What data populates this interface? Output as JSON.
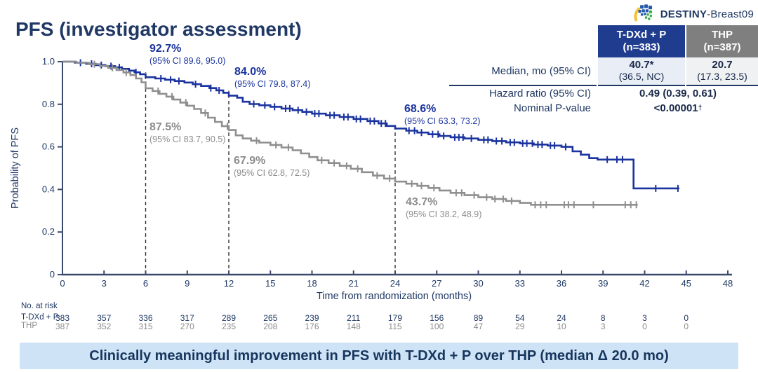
{
  "logo": {
    "name": "DESTINY",
    "suffix": "-Breast09"
  },
  "title": "PFS (investigator assessment)",
  "results_table": {
    "columns": [
      {
        "name": "T-DXd + P",
        "n": "(n=383)"
      },
      {
        "name": "THP",
        "n": "(n=387)"
      }
    ],
    "rows": [
      {
        "label": "Median, mo (95% CI)",
        "values": [
          {
            "main": "40.7*",
            "ci": "(36.5, NC)"
          },
          {
            "main": "20.7",
            "ci": "(17.3, 23.5)"
          }
        ]
      },
      {
        "label": "Hazard ratio (95% CI)",
        "span_value": "0.49 (0.39, 0.61)",
        "superscript": ""
      },
      {
        "label": "Nominal P-value",
        "span_value": "<0.00001",
        "superscript": "†"
      }
    ]
  },
  "chart_data": {
    "type": "line",
    "subtype": "kaplan-meier-step",
    "x_label": "Time from randomization (months)",
    "y_label": "Probability of PFS",
    "xlim": [
      0,
      48
    ],
    "ylim": [
      0,
      1.0
    ],
    "x_ticks": [
      0,
      3,
      6,
      9,
      12,
      15,
      18,
      21,
      24,
      27,
      30,
      33,
      36,
      39,
      42,
      45,
      48
    ],
    "y_ticks": [
      0,
      0.2,
      0.4,
      0.6,
      0.8,
      1.0
    ],
    "dashed_reference_months": [
      6,
      12,
      24
    ],
    "grid": false,
    "series": [
      {
        "name": "T-DXd + P",
        "color": "#1A339E",
        "steps": [
          [
            0,
            1
          ],
          [
            0.9,
            0.995
          ],
          [
            1.7,
            0.99
          ],
          [
            2.4,
            0.984
          ],
          [
            3.1,
            0.979
          ],
          [
            3.8,
            0.973
          ],
          [
            4.3,
            0.966
          ],
          [
            4.8,
            0.958
          ],
          [
            5.2,
            0.95
          ],
          [
            5.6,
            0.941
          ],
          [
            6,
            0.927
          ],
          [
            6.7,
            0.921
          ],
          [
            7.4,
            0.915
          ],
          [
            8.1,
            0.909
          ],
          [
            8.8,
            0.902
          ],
          [
            9.4,
            0.894
          ],
          [
            10,
            0.886
          ],
          [
            10.6,
            0.876
          ],
          [
            11.1,
            0.865
          ],
          [
            11.6,
            0.854
          ],
          [
            12,
            0.84
          ],
          [
            12.6,
            0.831
          ],
          [
            13,
            0.812
          ],
          [
            13.5,
            0.801
          ],
          [
            14.2,
            0.795
          ],
          [
            15,
            0.788
          ],
          [
            15.8,
            0.78
          ],
          [
            16.6,
            0.772
          ],
          [
            17.3,
            0.764
          ],
          [
            18,
            0.756
          ],
          [
            19,
            0.748
          ],
          [
            20,
            0.74
          ],
          [
            21,
            0.731
          ],
          [
            22,
            0.721
          ],
          [
            22.8,
            0.71
          ],
          [
            23.4,
            0.698
          ],
          [
            24,
            0.686
          ],
          [
            24.8,
            0.676
          ],
          [
            25.6,
            0.667
          ],
          [
            26.4,
            0.659
          ],
          [
            27.2,
            0.651
          ],
          [
            28,
            0.645
          ],
          [
            29,
            0.639
          ],
          [
            30,
            0.633
          ],
          [
            31,
            0.627
          ],
          [
            32,
            0.621
          ],
          [
            33,
            0.616
          ],
          [
            34,
            0.611
          ],
          [
            35,
            0.606
          ],
          [
            36,
            0.6
          ],
          [
            36.8,
            0.579
          ],
          [
            37.4,
            0.563
          ],
          [
            38,
            0.547
          ],
          [
            38.6,
            0.54
          ],
          [
            41.2,
            0.405
          ],
          [
            44.5,
            0.405
          ]
        ],
        "censor_times": [
          1.3,
          2.1,
          2.8,
          3.5,
          4.1,
          5.3,
          7.1,
          7.8,
          8.4,
          9.6,
          10.7,
          11.3,
          13.8,
          14.6,
          15.3,
          16.1,
          16.4,
          17,
          17.6,
          18.2,
          18.5,
          19.3,
          19.6,
          20.3,
          20.6,
          21.2,
          21.5,
          22.2,
          22.5,
          23,
          23.3,
          25,
          25.4,
          25.9,
          26.7,
          27.1,
          27.5,
          28.3,
          28.6,
          28.9,
          29.5,
          30.4,
          30.7,
          31.3,
          31.7,
          32.3,
          32.6,
          33.2,
          33.5,
          33.9,
          34.3,
          34.6,
          35.2,
          35.5,
          36.3,
          39.3,
          40,
          40.4,
          42.8,
          44.4
        ]
      },
      {
        "name": "THP",
        "color": "#8F8F8F",
        "steps": [
          [
            0,
            1
          ],
          [
            1,
            0.995
          ],
          [
            1.9,
            0.988
          ],
          [
            2.7,
            0.98
          ],
          [
            3.3,
            0.971
          ],
          [
            3.9,
            0.961
          ],
          [
            4.4,
            0.949
          ],
          [
            4.9,
            0.937
          ],
          [
            5.3,
            0.921
          ],
          [
            5.7,
            0.903
          ],
          [
            6,
            0.875
          ],
          [
            6.5,
            0.862
          ],
          [
            7,
            0.849
          ],
          [
            7.5,
            0.836
          ],
          [
            8,
            0.822
          ],
          [
            8.5,
            0.808
          ],
          [
            9,
            0.793
          ],
          [
            9.5,
            0.778
          ],
          [
            10,
            0.759
          ],
          [
            10.5,
            0.737
          ],
          [
            11,
            0.717
          ],
          [
            11.5,
            0.697
          ],
          [
            12,
            0.679
          ],
          [
            12.5,
            0.654
          ],
          [
            13,
            0.639
          ],
          [
            13.6,
            0.629
          ],
          [
            14.2,
            0.62
          ],
          [
            15,
            0.609
          ],
          [
            15.8,
            0.597
          ],
          [
            16.6,
            0.584
          ],
          [
            17.2,
            0.569
          ],
          [
            17.8,
            0.552
          ],
          [
            18.4,
            0.537
          ],
          [
            19.2,
            0.524
          ],
          [
            20,
            0.511
          ],
          [
            20.8,
            0.497
          ],
          [
            21.6,
            0.481
          ],
          [
            22.4,
            0.465
          ],
          [
            23.2,
            0.451
          ],
          [
            24,
            0.437
          ],
          [
            24.8,
            0.427
          ],
          [
            25.6,
            0.417
          ],
          [
            26.4,
            0.407
          ],
          [
            27.2,
            0.395
          ],
          [
            28,
            0.384
          ],
          [
            29,
            0.373
          ],
          [
            30,
            0.363
          ],
          [
            31,
            0.355
          ],
          [
            32,
            0.346
          ],
          [
            33,
            0.337
          ],
          [
            33.8,
            0.328
          ],
          [
            41.5,
            0.328
          ]
        ],
        "censor_times": [
          2.3,
          3.6,
          4.6,
          6.9,
          7.9,
          8.9,
          10.3,
          11.9,
          14,
          15.4,
          16.3,
          18.7,
          19.6,
          20.5,
          21.3,
          22.7,
          23.6,
          25.2,
          25.9,
          26.8,
          28.4,
          28.8,
          29.7,
          30.6,
          31.2,
          31.8,
          32.4,
          34.1,
          34.5,
          34.9,
          36.2,
          36.5,
          36.9,
          38.3,
          40.6,
          41,
          41.4
        ]
      }
    ],
    "annotations": [
      {
        "series": "T-DXd + P",
        "month": 6,
        "value": "92.7%",
        "ci": "(95% CI 89.6, 95.0)"
      },
      {
        "series": "T-DXd + P",
        "month": 12,
        "value": "84.0%",
        "ci": "(95% CI 79.8, 87.4)"
      },
      {
        "series": "T-DXd + P",
        "month": 24,
        "value": "68.6%",
        "ci": "(95% CI 63.3, 73.2)"
      },
      {
        "series": "THP",
        "month": 6,
        "value": "87.5%",
        "ci": "(95% CI 83.7, 90.5)"
      },
      {
        "series": "THP",
        "month": 12,
        "value": "67.9%",
        "ci": "(95% CI 62.8, 72.5)"
      },
      {
        "series": "THP",
        "month": 24,
        "value": "43.7%",
        "ci": "(95% CI 38.2, 48.9)"
      }
    ]
  },
  "at_risk": {
    "title": "No. at risk",
    "months": [
      0,
      3,
      6,
      9,
      12,
      15,
      18,
      21,
      24,
      27,
      30,
      33,
      36,
      39,
      42,
      45
    ],
    "rows": [
      {
        "label": "T-DXd + P",
        "values": [
          383,
          357,
          336,
          317,
          289,
          265,
          239,
          211,
          179,
          156,
          89,
          54,
          24,
          8,
          3,
          0
        ]
      },
      {
        "label": "THP",
        "values": [
          387,
          352,
          315,
          270,
          235,
          208,
          176,
          148,
          115,
          100,
          47,
          29,
          10,
          3,
          0,
          0
        ]
      }
    ]
  },
  "banner": {
    "text": "Clinically meaningful improvement in PFS with T-DXd + P over THP (median Δ 20.0 mo)"
  },
  "colors": {
    "tdxd_blue": "#1A339E",
    "thp_gray": "#8F8F8F",
    "navy_text": "#1F3864",
    "banner_bg": "#CFE3F6",
    "header_blue_bg": "#203C8F",
    "header_gray_bg": "#7F7F7F"
  }
}
